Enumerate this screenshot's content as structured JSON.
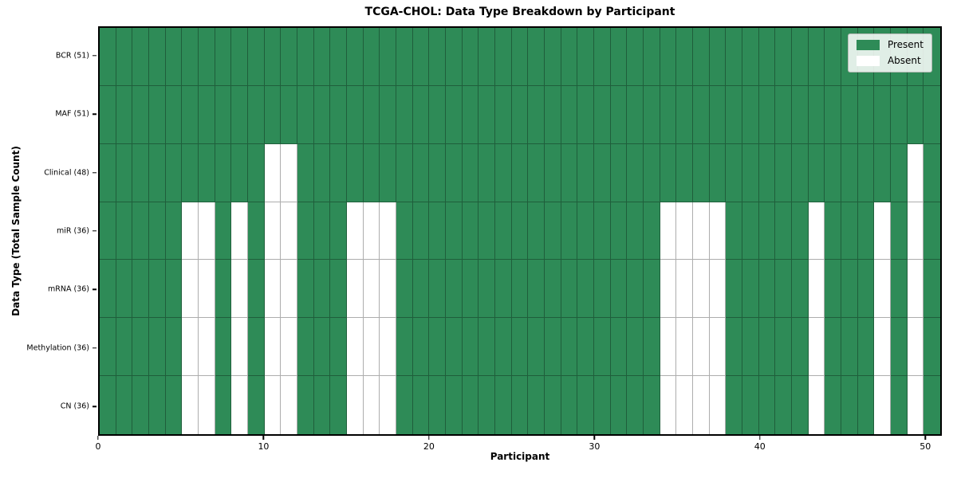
{
  "chart_data": {
    "type": "heatmap",
    "title": "TCGA-CHOL: Data Type Breakdown by Participant",
    "xlabel": "Participant",
    "ylabel": "Data Type (Total Sample Count)",
    "n_participants": 51,
    "x_range": [
      0,
      51
    ],
    "x_ticks": [
      0,
      10,
      20,
      30,
      40,
      50
    ],
    "grid": true,
    "legend_position": "upper right",
    "legend": [
      {
        "label": "Present",
        "color": "#2e8b57"
      },
      {
        "label": "Absent",
        "color": "#ffffff"
      }
    ],
    "colors": {
      "present": "#2e8b57",
      "absent": "#ffffff",
      "grid_line": "rgba(0,0,0,0.32)",
      "spine": "#000000"
    },
    "rows": [
      {
        "key": "bcr",
        "label": "BCR (51)",
        "total_samples": 51,
        "absent_participants": []
      },
      {
        "key": "maf",
        "label": "MAF (51)",
        "total_samples": 51,
        "absent_participants": []
      },
      {
        "key": "clinical",
        "label": "Clinical (48)",
        "total_samples": 48,
        "absent_participants": [
          10,
          11,
          49
        ]
      },
      {
        "key": "mir",
        "label": "miR (36)",
        "total_samples": 36,
        "absent_participants": [
          5,
          6,
          8,
          10,
          11,
          15,
          16,
          17,
          34,
          35,
          36,
          37,
          43,
          47,
          49
        ]
      },
      {
        "key": "mrna",
        "label": "mRNA (36)",
        "total_samples": 36,
        "absent_participants": [
          5,
          6,
          8,
          10,
          11,
          15,
          16,
          17,
          34,
          35,
          36,
          37,
          43,
          47,
          49
        ]
      },
      {
        "key": "methylation",
        "label": "Methylation (36)",
        "total_samples": 36,
        "absent_participants": [
          5,
          6,
          8,
          10,
          11,
          15,
          16,
          17,
          34,
          35,
          36,
          37,
          43,
          47,
          49
        ]
      },
      {
        "key": "cn",
        "label": "CN (36)",
        "total_samples": 36,
        "absent_participants": [
          5,
          6,
          8,
          10,
          11,
          15,
          16,
          17,
          34,
          35,
          36,
          37,
          43,
          47,
          49
        ]
      }
    ]
  }
}
